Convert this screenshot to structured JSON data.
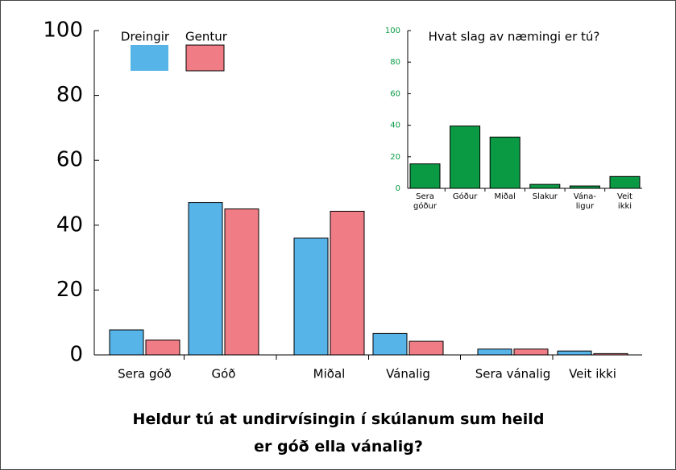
{
  "chart_data": [
    {
      "type": "bar",
      "title": "Heldur tú at undirvísingin í skúlanum sum heild\ner góð ella vánalig?",
      "categories": [
        "Sera góð",
        "Góð",
        "Miðal",
        "Vánalig",
        "Sera vánalig",
        "Veit ikki"
      ],
      "series": [
        {
          "name": "Dreingir",
          "color": "#56b4e9",
          "values": [
            7.7,
            47,
            36,
            6.6,
            1.8,
            1.2
          ]
        },
        {
          "name": "Gentur",
          "color": "#f07c85",
          "values": [
            4.6,
            45,
            44.3,
            4.2,
            1.8,
            0.4
          ]
        }
      ],
      "ylim": [
        0,
        100
      ],
      "yticks": [
        0,
        20,
        40,
        60,
        80,
        100
      ]
    },
    {
      "type": "bar",
      "title": "Hvat slag av næmingi er tú?",
      "categories": [
        "Sera\ngóður",
        "Góður",
        "Miðal",
        "Slakur",
        "Vána-\nligur",
        "Veit\nikki"
      ],
      "values": [
        15.5,
        39.5,
        32.5,
        2.5,
        1.5,
        7.5
      ],
      "color": "#0a9a44",
      "ylim": [
        0,
        100
      ],
      "yticks": [
        0,
        20,
        40,
        60,
        80,
        100
      ],
      "tick_color": "#0a9a44"
    }
  ]
}
